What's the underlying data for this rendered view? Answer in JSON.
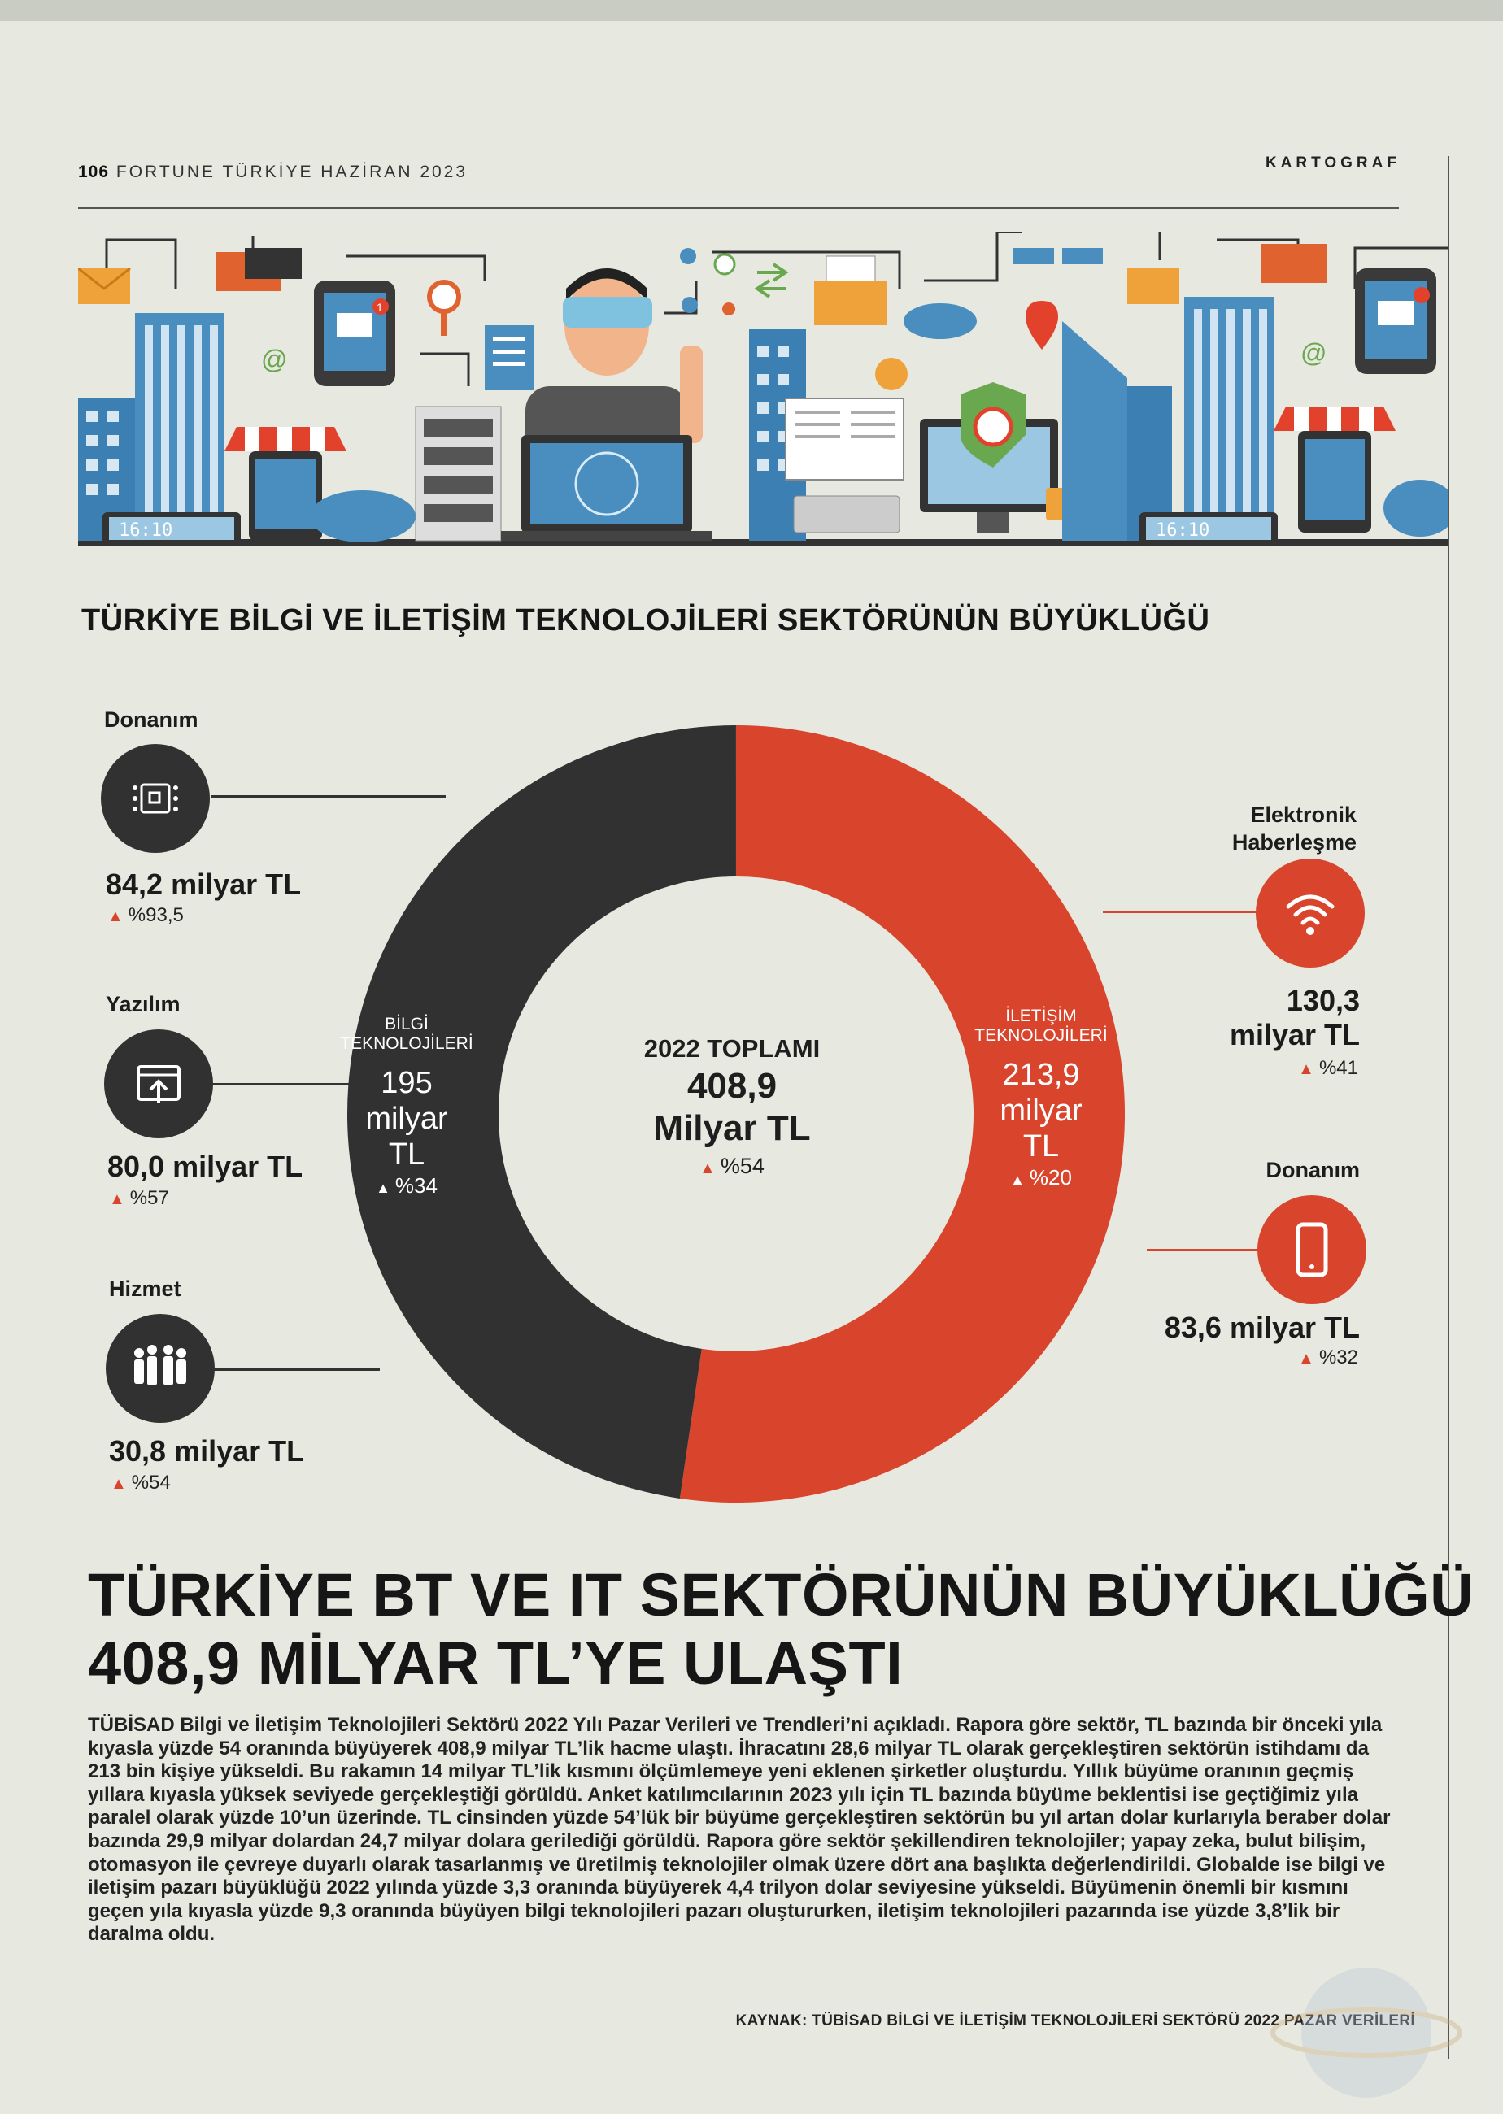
{
  "header": {
    "page_number": "106",
    "publication": "FORTUNE TÜRKİYE HAZİRAN 2023",
    "section": "KARTOGRAF"
  },
  "illustration": {
    "clock_left": "16:10",
    "clock_right": "16:10",
    "badge_count": "1",
    "at_sign": "@"
  },
  "infographic": {
    "title": "TÜRKİYE BİLGİ VE İLETİŞİM TEKNOLOJİLERİ SEKTÖRÜNÜN BÜYÜKLÜĞÜ",
    "center": {
      "label": "2022 TOPLAMI",
      "value_line1": "408,9",
      "value_line2": "Milyar TL",
      "pct": "%54"
    },
    "bilgi": {
      "label_line1": "BİLGİ",
      "label_line2": "TEKNOLOJİLERİ",
      "value_line1": "195",
      "value_line2": "milyar",
      "value_line3": "TL",
      "pct": "%34",
      "share": 195,
      "color": "#313131"
    },
    "iletisim": {
      "label_line1": "İLETİŞİM",
      "label_line2": "TEKNOLOJİLERİ",
      "value_line1": "213,9",
      "value_line2": "milyar",
      "value_line3": "TL",
      "pct": "%20",
      "share": 213.9,
      "color": "#d9442c"
    },
    "left_items": [
      {
        "label": "Donanım",
        "value": "84,2 milyar TL",
        "pct": "%93,5",
        "icon": "hardware-chip-icon"
      },
      {
        "label": "Yazılım",
        "value": "80,0 milyar TL",
        "pct": "%57",
        "icon": "software-upload-icon"
      },
      {
        "label": "Hizmet",
        "value": "30,8 milyar TL",
        "pct": "%54",
        "icon": "people-service-icon"
      }
    ],
    "right_items": [
      {
        "label_line1": "Elektronik",
        "label_line2": "Haberleşme",
        "value_line1": "130,3",
        "value_line2": "milyar TL",
        "pct": "%41",
        "icon": "wifi-icon"
      },
      {
        "label": "Donanım",
        "value": "83,6 milyar TL",
        "pct": "%32",
        "icon": "smartphone-icon"
      }
    ]
  },
  "article": {
    "headline_line1": "TÜRKİYE BT VE IT SEKTÖRÜNÜN BÜYÜKLÜĞÜ",
    "headline_line2": "408,9 MİLYAR TL’YE ULAŞTI",
    "lead": "TÜBİSAD",
    "body": "Bilgi ve İletişim Teknolojileri Sektörü 2022 Yılı Pazar Verileri ve Trendleri’ni açıkladı. Rapora göre sektör, TL bazında bir önceki yıla kıyasla yüzde 54 oranında büyüyerek 408,9 milyar TL’lik hacme ulaştı. İhracatını 28,6 milyar TL olarak gerçekleştiren sektörün istihdamı da 213 bin kişiye yükseldi. Bu rakamın 14 milyar TL’lik kısmını ölçümlemeye yeni eklenen şirketler oluşturdu. Yıllık büyüme oranının geçmiş yıllara kıyasla yüksek seviyede gerçekleştiği görüldü. Anket katılımcılarının 2023 yılı için TL bazında büyüme beklentisi ise geçtiğimiz yıla paralel olarak yüzde 10’un üzerinde. TL cinsinden yüzde 54’lük bir büyüme gerçekleştiren sektörün bu yıl artan dolar kurlarıyla beraber dolar bazında 29,9 milyar dolardan 24,7 milyar dolara gerilediği görüldü. Rapora göre sektör şekillendiren teknolojiler; yapay zeka, bulut bilişim, otomasyon ile çevreye duyarlı olarak tasarlanmış ve üretilmiş teknolojiler olmak üzere dört ana başlıkta değerlendirildi. Globalde ise bilgi ve iletişim pazarı büyüklüğü 2022 yılında yüzde 3,3 oranında büyüyerek 4,4 trilyon dolar seviyesine yükseldi. Büyümenin önemli bir kısmını geçen yıla kıyasla yüzde 9,3 oranında büyüyen bilgi teknolojileri pazarı oluştururken, iletişim teknolojileri pazarında ise yüzde 3,8’lik bir daralma oldu.",
    "source": "KAYNAK: TÜBİSAD BİLGİ VE İLETİŞİM TEKNOLOJİLERİ SEKTÖRÜ 2022 PAZAR VERİLERİ"
  }
}
